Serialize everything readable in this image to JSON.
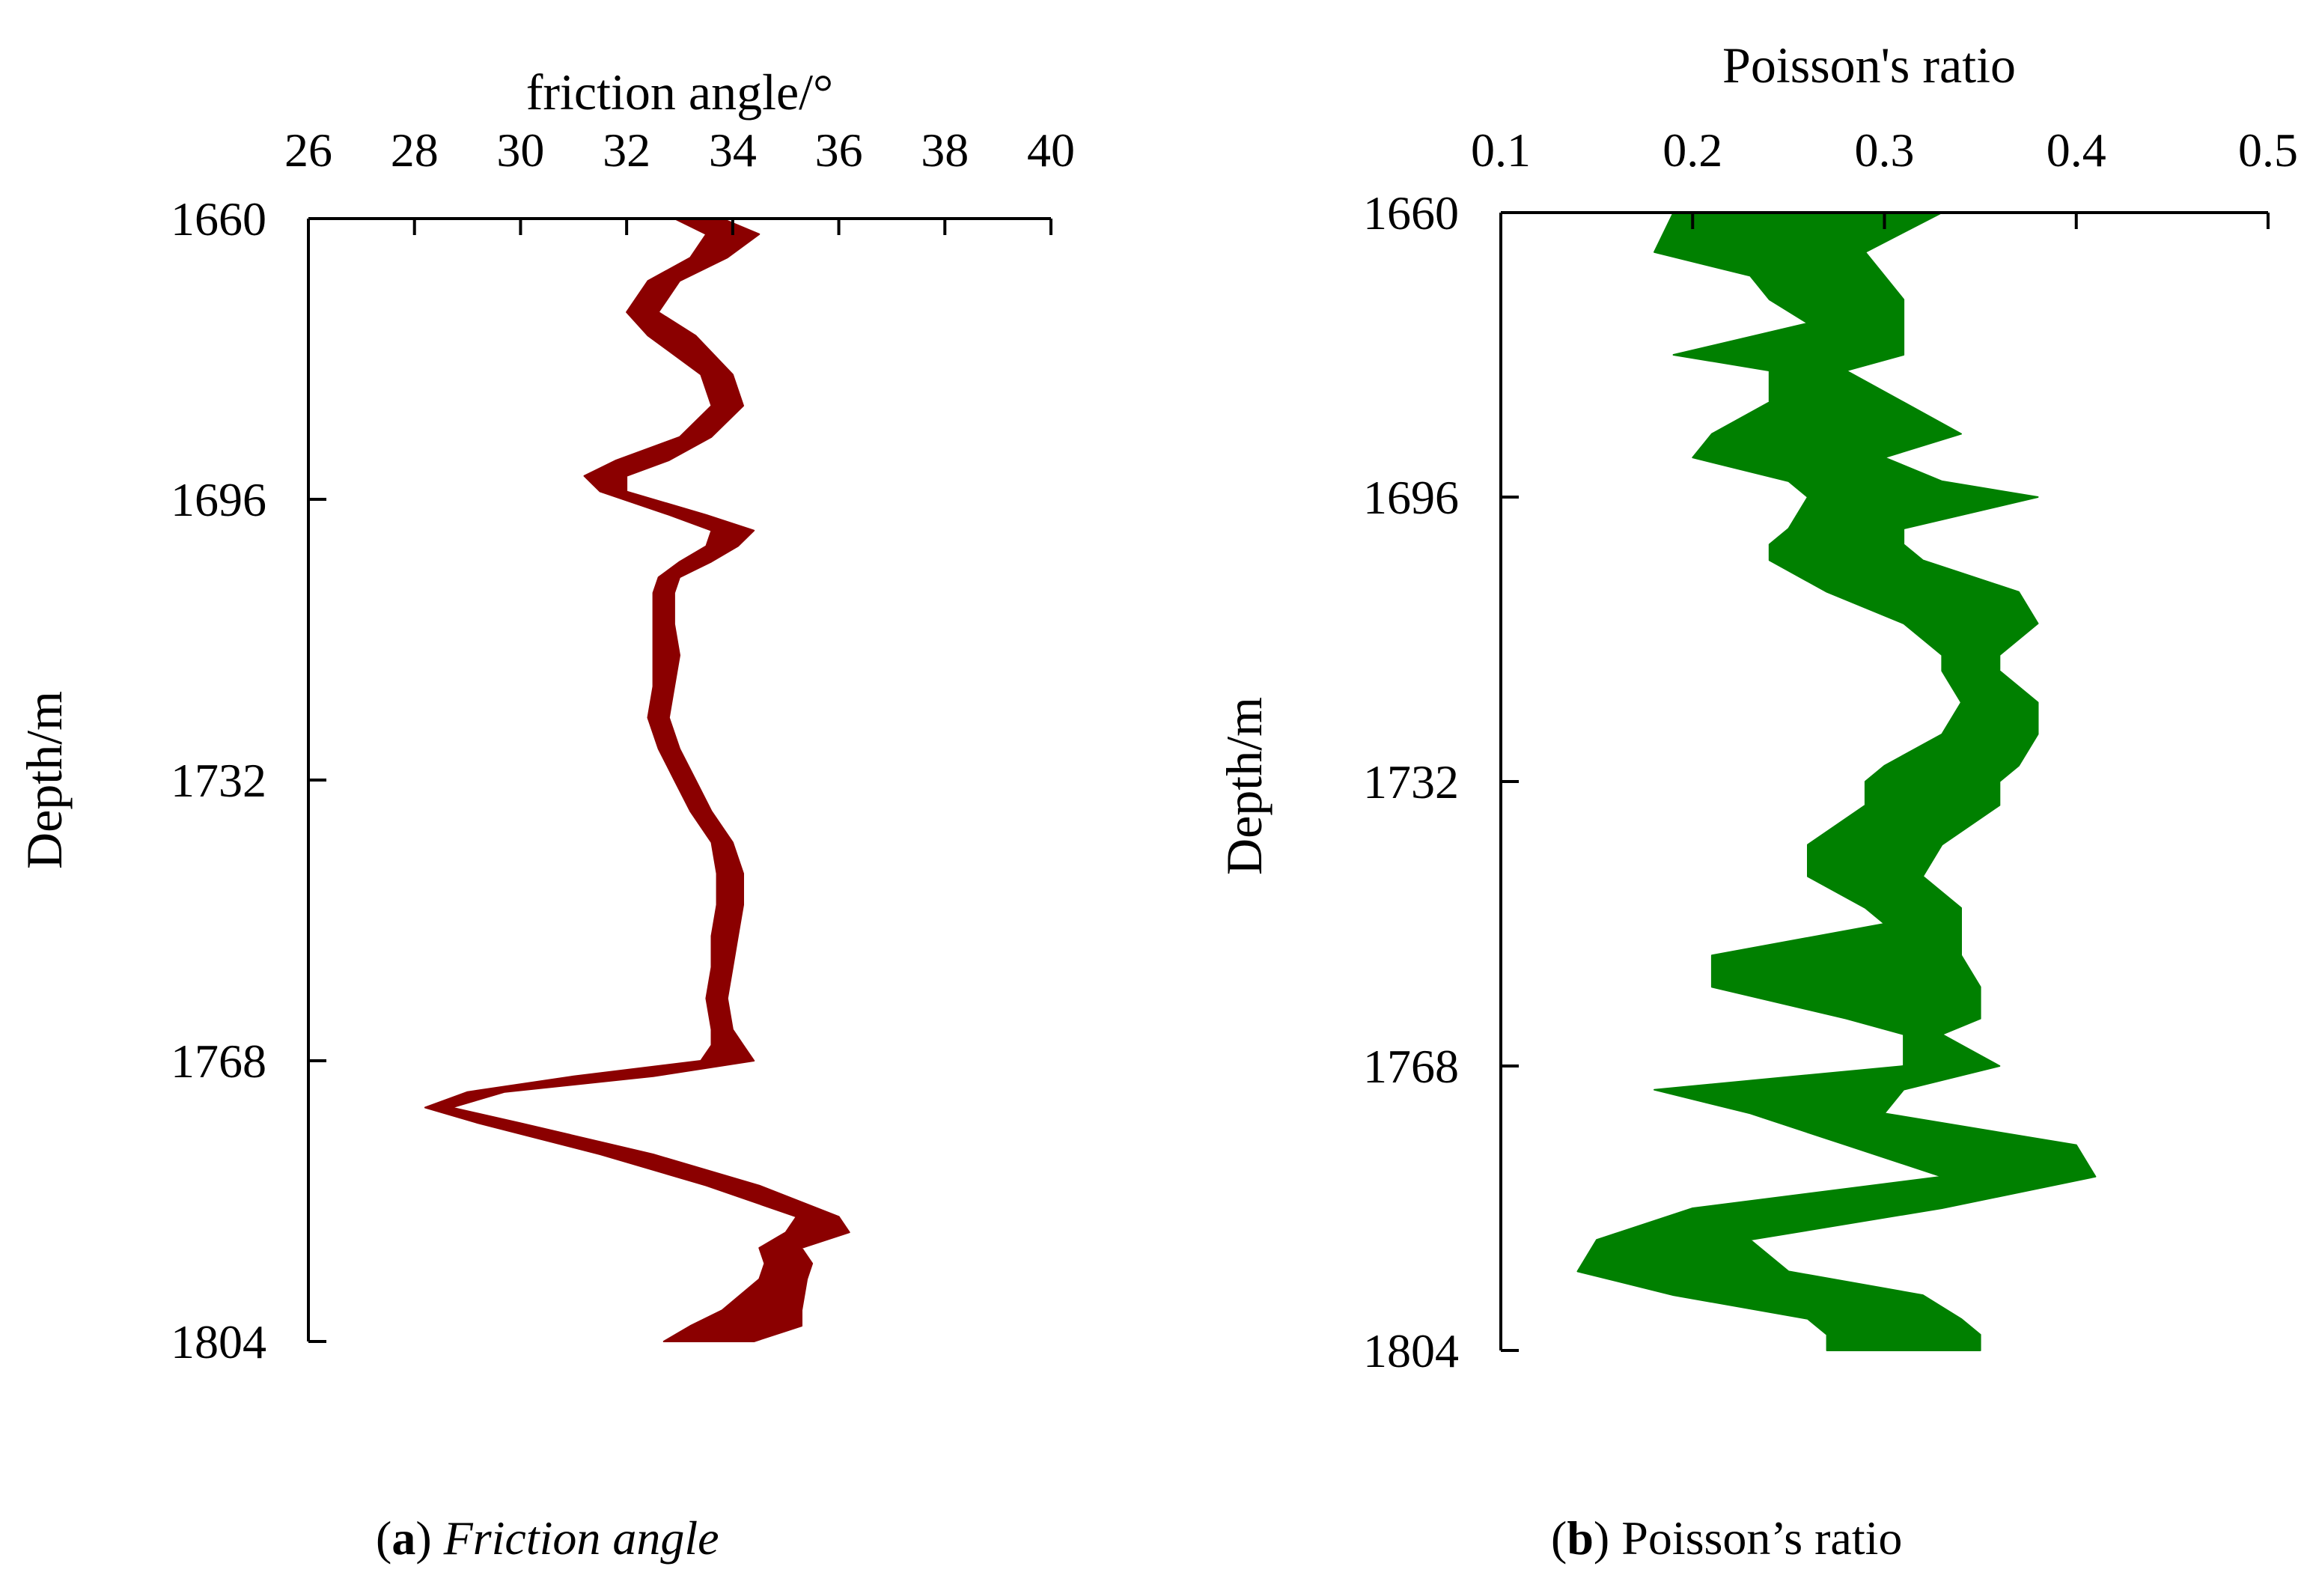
{
  "panels": [
    {
      "chart_data": {
        "type": "area",
        "orientation": "vertical-depth",
        "title": "friction angle/°",
        "xlabel": "friction angle/°",
        "ylabel": "Depth/m",
        "xlim": [
          26,
          40
        ],
        "xticks": [
          "26",
          "28",
          "30",
          "32",
          "34",
          "36",
          "38",
          "40"
        ],
        "xtick_values": [
          26,
          28,
          30,
          32,
          34,
          36,
          38,
          40
        ],
        "ylim": [
          1660,
          1804
        ],
        "yticks": [
          "1660",
          "1696",
          "1732",
          "1768",
          "1804"
        ],
        "ytick_values": [
          1660,
          1696,
          1732,
          1768,
          1804
        ],
        "y_inverted": true,
        "x_axis_position": "top",
        "grid": false,
        "color": "#8b0000",
        "series": [
          {
            "depth": [
              1660,
              1662,
              1665,
              1668,
              1672,
              1675,
              1680,
              1684,
              1688,
              1691,
              1693,
              1695,
              1698,
              1700,
              1702,
              1704,
              1706,
              1708,
              1712,
              1716,
              1720,
              1724,
              1728,
              1732,
              1736,
              1740,
              1744,
              1748,
              1752,
              1756,
              1760,
              1764,
              1766,
              1768,
              1770,
              1772,
              1774,
              1776,
              1780,
              1784,
              1788,
              1790,
              1792,
              1794,
              1796,
              1800,
              1802,
              1804
            ],
            "lower": [
              32.9,
              33.5,
              33.2,
              32.4,
              32.0,
              32.4,
              33.4,
              33.6,
              33.0,
              31.8,
              31.2,
              31.5,
              32.8,
              33.6,
              33.5,
              33.0,
              32.6,
              32.5,
              32.5,
              32.5,
              32.5,
              32.4,
              32.6,
              32.9,
              33.2,
              33.6,
              33.7,
              33.7,
              33.6,
              33.6,
              33.5,
              33.6,
              33.6,
              33.4,
              31.0,
              29.0,
              28.2,
              29.2,
              31.5,
              33.5,
              35.2,
              35.0,
              34.5,
              34.6,
              34.5,
              33.8,
              33.2,
              32.7
            ],
            "upper": [
              33.8,
              34.5,
              33.9,
              33.0,
              32.6,
              33.3,
              34.0,
              34.2,
              33.6,
              32.8,
              32.0,
              32.0,
              33.5,
              34.4,
              34.1,
              33.6,
              33.0,
              32.9,
              32.9,
              33.0,
              32.9,
              32.8,
              33.0,
              33.3,
              33.6,
              34.0,
              34.2,
              34.2,
              34.1,
              34.0,
              33.9,
              34.0,
              34.2,
              34.4,
              32.5,
              29.7,
              28.7,
              30.0,
              32.5,
              34.5,
              36.0,
              36.2,
              35.3,
              35.5,
              35.4,
              35.3,
              35.3,
              34.4
            ]
          }
        ]
      },
      "caption": {
        "letter": "a",
        "text": "Friction angle",
        "italic": true
      }
    },
    {
      "chart_data": {
        "type": "area",
        "orientation": "vertical-depth",
        "title": "Poisson's ratio",
        "xlabel": "Poisson's ratio",
        "ylabel": "Depth/m",
        "xlim": [
          0.1,
          0.5
        ],
        "xticks": [
          "0.1",
          "0.2",
          "0.3",
          "0.4",
          "0.5"
        ],
        "xtick_values": [
          0.1,
          0.2,
          0.3,
          0.4,
          0.5
        ],
        "ylim": [
          1660,
          1804
        ],
        "yticks": [
          "1660",
          "1696",
          "1732",
          "1768",
          "1804"
        ],
        "ytick_values": [
          1660,
          1696,
          1732,
          1768,
          1804
        ],
        "y_inverted": true,
        "x_axis_position": "top",
        "grid": false,
        "color": "#008000",
        "series": [
          {
            "depth": [
              1660,
              1665,
              1668,
              1671,
              1674,
              1678,
              1680,
              1684,
              1688,
              1691,
              1694,
              1696,
              1700,
              1702,
              1704,
              1708,
              1712,
              1716,
              1718,
              1722,
              1726,
              1730,
              1732,
              1735,
              1740,
              1744,
              1748,
              1750,
              1754,
              1758,
              1762,
              1764,
              1768,
              1771,
              1774,
              1778,
              1782,
              1786,
              1790,
              1794,
              1797,
              1800,
              1802,
              1804
            ],
            "lower": [
              0.19,
              0.18,
              0.23,
              0.24,
              0.26,
              0.19,
              0.24,
              0.24,
              0.21,
              0.2,
              0.25,
              0.26,
              0.25,
              0.24,
              0.24,
              0.27,
              0.31,
              0.33,
              0.33,
              0.34,
              0.33,
              0.3,
              0.29,
              0.29,
              0.26,
              0.26,
              0.29,
              0.3,
              0.21,
              0.21,
              0.28,
              0.31,
              0.31,
              0.18,
              0.23,
              0.28,
              0.33,
              0.2,
              0.15,
              0.14,
              0.19,
              0.26,
              0.27,
              0.27
            ],
            "upper": [
              0.33,
              0.29,
              0.3,
              0.31,
              0.31,
              0.31,
              0.28,
              0.31,
              0.34,
              0.3,
              0.33,
              0.38,
              0.31,
              0.31,
              0.32,
              0.37,
              0.38,
              0.36,
              0.36,
              0.38,
              0.38,
              0.37,
              0.36,
              0.36,
              0.33,
              0.32,
              0.34,
              0.34,
              0.34,
              0.35,
              0.35,
              0.33,
              0.36,
              0.31,
              0.3,
              0.4,
              0.41,
              0.33,
              0.23,
              0.25,
              0.32,
              0.34,
              0.35,
              0.35
            ]
          }
        ]
      },
      "caption": {
        "letter": "b",
        "text": "Poisson’s ratio",
        "italic": false
      }
    }
  ]
}
